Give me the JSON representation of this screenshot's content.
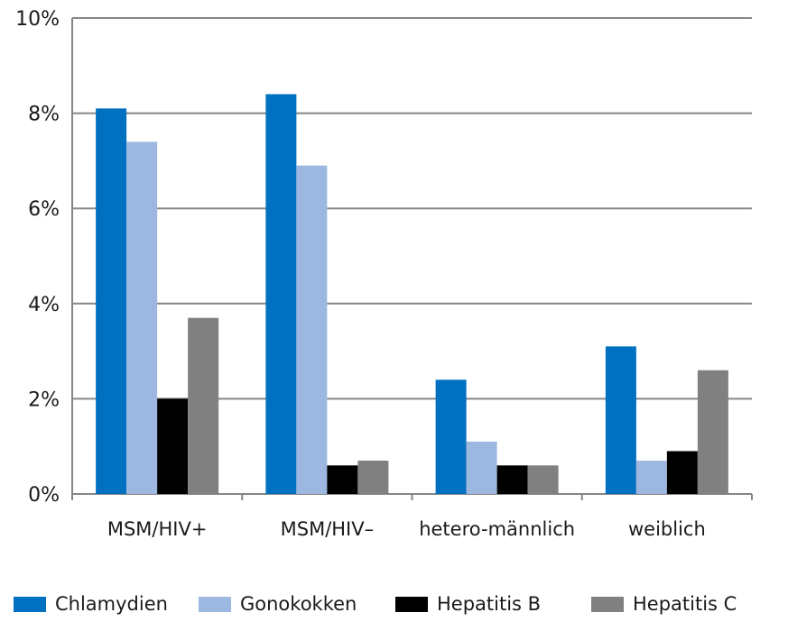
{
  "chart_data": {
    "type": "bar",
    "title": "",
    "xlabel": "",
    "ylabel": "",
    "categories": [
      "MSM/HIV+",
      "MSM/HIV–",
      "hetero-männlich",
      "weiblich"
    ],
    "series": [
      {
        "name": "Chlamydien",
        "color": "#0070c0",
        "values": [
          8.1,
          8.4,
          2.4,
          3.1
        ]
      },
      {
        "name": "Gonokokken",
        "color": "#9db8e0",
        "values": [
          7.4,
          6.9,
          1.1,
          0.7
        ]
      },
      {
        "name": "Hepatitis B",
        "color": "#000000",
        "values": [
          2.0,
          0.6,
          0.6,
          0.9
        ]
      },
      {
        "name": "Hepatitis C",
        "color": "#808080",
        "values": [
          3.7,
          0.7,
          0.6,
          2.6
        ]
      }
    ],
    "ylim": [
      0,
      10
    ],
    "yticks": [
      0,
      2,
      4,
      6,
      8,
      10
    ],
    "ytick_labels": [
      "0%",
      "2%",
      "4%",
      "6%",
      "8%",
      "10%"
    ],
    "grid": true,
    "legend_position": "bottom"
  }
}
